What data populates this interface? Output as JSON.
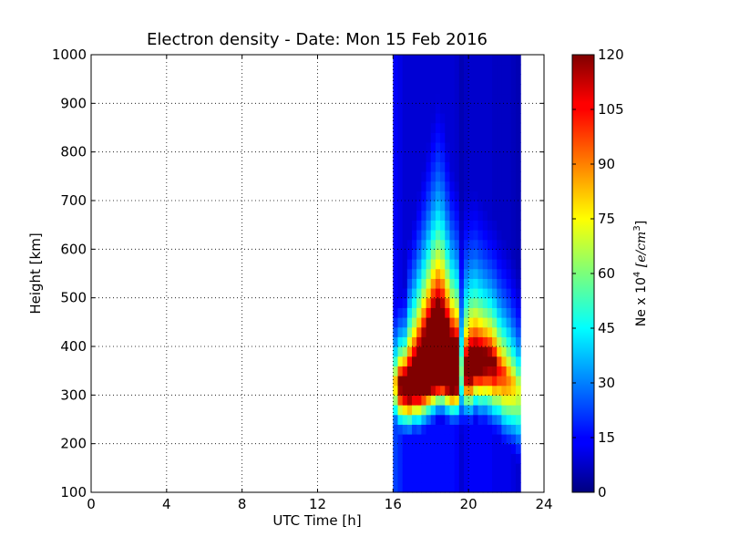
{
  "chart_data": {
    "type": "heatmap",
    "title": "Electron density - Date: Mon 15 Feb 2016",
    "xlabel": "UTC Time [h]",
    "ylabel": "Height [km]",
    "xlim": [
      0,
      24
    ],
    "ylim": [
      100,
      1000
    ],
    "x_ticks": [
      0,
      4,
      8,
      12,
      16,
      20,
      24
    ],
    "x_tick_labels": [
      "0",
      "4",
      "8",
      "12",
      "16",
      "20",
      "24"
    ],
    "y_ticks": [
      100,
      200,
      300,
      400,
      500,
      600,
      700,
      800,
      900,
      1000
    ],
    "y_tick_labels": [
      "100",
      "200",
      "300",
      "400",
      "500",
      "600",
      "700",
      "800",
      "900",
      "1000"
    ],
    "grid": "dotted",
    "colormap": "jet",
    "data_time_range_h": [
      16.0,
      22.75
    ],
    "colorbar": {
      "range": [
        0,
        120
      ],
      "ticks": [
        0,
        15,
        30,
        45,
        60,
        75,
        90,
        105,
        120
      ],
      "tick_labels": [
        "0",
        "15",
        "30",
        "45",
        "60",
        "75",
        "90",
        "105",
        "120"
      ],
      "label_prefix": "Ne x 10",
      "label_exponent": "4",
      "label_unit": "[e/cm",
      "label_unit_exponent": "3",
      "label_unit_close": "]"
    },
    "profiles": [
      {
        "t": 16.0,
        "peak_height": 330,
        "peak_ne": 82,
        "width_below": 55,
        "width_above": 85,
        "floor": 14
      },
      {
        "t": 16.25,
        "peak_height": 330,
        "peak_ne": 125,
        "width_below": 55,
        "width_above": 75,
        "floor": 12
      },
      {
        "t": 16.5,
        "peak_height": 330,
        "peak_ne": 140,
        "width_below": 55,
        "width_above": 75,
        "floor": 10
      },
      {
        "t": 16.75,
        "peak_height": 330,
        "peak_ne": 150,
        "width_below": 55,
        "width_above": 110,
        "floor": 10
      },
      {
        "t": 17.0,
        "peak_height": 340,
        "peak_ne": 160,
        "width_below": 55,
        "width_above": 120,
        "floor": 10
      },
      {
        "t": 17.25,
        "peak_height": 350,
        "peak_ne": 175,
        "width_below": 60,
        "width_above": 130,
        "floor": 10
      },
      {
        "t": 17.5,
        "peak_height": 360,
        "peak_ne": 190,
        "width_below": 60,
        "width_above": 140,
        "floor": 10
      },
      {
        "t": 17.75,
        "peak_height": 370,
        "peak_ne": 205,
        "width_below": 60,
        "width_above": 150,
        "floor": 10
      },
      {
        "t": 18.0,
        "peak_height": 380,
        "peak_ne": 220,
        "width_below": 60,
        "width_above": 160,
        "floor": 10
      },
      {
        "t": 18.25,
        "peak_height": 380,
        "peak_ne": 230,
        "width_below": 55,
        "width_above": 170,
        "floor": 10
      },
      {
        "t": 18.5,
        "peak_height": 380,
        "peak_ne": 220,
        "width_below": 55,
        "width_above": 165,
        "floor": 10
      },
      {
        "t": 18.75,
        "peak_height": 370,
        "peak_ne": 205,
        "width_below": 55,
        "width_above": 150,
        "floor": 10
      },
      {
        "t": 19.0,
        "peak_height": 360,
        "peak_ne": 185,
        "width_below": 55,
        "width_above": 140,
        "floor": 10
      },
      {
        "t": 19.25,
        "peak_height": 360,
        "peak_ne": 175,
        "width_below": 55,
        "width_above": 130,
        "floor": 9
      },
      {
        "t": 19.5,
        "peak_height": 360,
        "peak_ne": 60,
        "width_below": 70,
        "width_above": 150,
        "floor": 6
      },
      {
        "t": 19.75,
        "peak_height": 360,
        "peak_ne": 130,
        "width_below": 55,
        "width_above": 130,
        "floor": 8
      },
      {
        "t": 20.0,
        "peak_height": 370,
        "peak_ne": 145,
        "width_below": 60,
        "width_above": 125,
        "floor": 9
      },
      {
        "t": 20.25,
        "peak_height": 380,
        "peak_ne": 140,
        "width_below": 60,
        "width_above": 125,
        "floor": 9
      },
      {
        "t": 20.5,
        "peak_height": 380,
        "peak_ne": 135,
        "width_below": 65,
        "width_above": 120,
        "floor": 9
      },
      {
        "t": 20.75,
        "peak_height": 380,
        "peak_ne": 130,
        "width_below": 65,
        "width_above": 115,
        "floor": 9
      },
      {
        "t": 21.0,
        "peak_height": 380,
        "peak_ne": 125,
        "width_below": 70,
        "width_above": 110,
        "floor": 9
      },
      {
        "t": 21.25,
        "peak_height": 370,
        "peak_ne": 120,
        "width_below": 70,
        "width_above": 110,
        "floor": 8
      },
      {
        "t": 21.5,
        "peak_height": 360,
        "peak_ne": 105,
        "width_below": 70,
        "width_above": 110,
        "floor": 8
      },
      {
        "t": 21.75,
        "peak_height": 350,
        "peak_ne": 98,
        "width_below": 75,
        "width_above": 110,
        "floor": 8
      },
      {
        "t": 22.0,
        "peak_height": 340,
        "peak_ne": 90,
        "width_below": 75,
        "width_above": 110,
        "floor": 8
      },
      {
        "t": 22.25,
        "peak_height": 330,
        "peak_ne": 82,
        "width_below": 75,
        "width_above": 105,
        "floor": 7
      },
      {
        "t": 22.5,
        "peak_height": 320,
        "peak_ne": 72,
        "width_below": 80,
        "width_above": 100,
        "floor": 6
      }
    ]
  }
}
